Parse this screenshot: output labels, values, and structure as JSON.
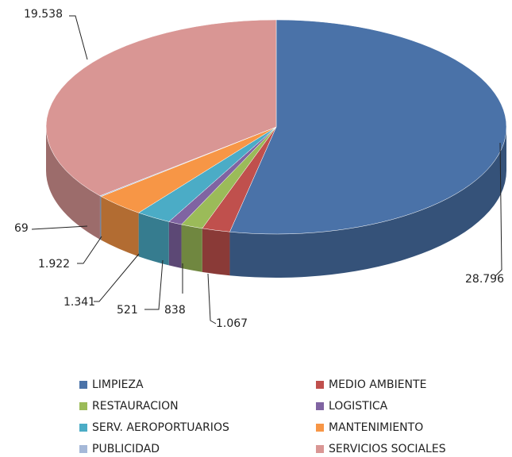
{
  "chart_data": {
    "type": "pie3d",
    "categories": [
      "LIMPIEZA",
      "MEDIO AMBIENTE",
      "RESTAURACION",
      "LOGISTICA",
      "SERV. AEROPORTUARIOS",
      "MANTENIMIENTO",
      "PUBLICIDAD",
      "SERVICIOS SOCIALES"
    ],
    "values": [
      28796,
      1067,
      838,
      521,
      1341,
      1922,
      69,
      19538
    ],
    "value_labels": [
      "28.796",
      "1.067",
      "838",
      "521",
      "1.341",
      "1.922",
      "69",
      "19.538"
    ],
    "colors": [
      "#4a72a8",
      "#c0504d",
      "#9bbb59",
      "#8064a2",
      "#4bacc6",
      "#f79646",
      "#a5b8d8",
      "#d99694"
    ],
    "legend": "bottom"
  }
}
